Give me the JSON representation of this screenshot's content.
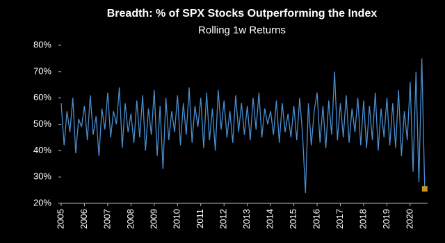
{
  "chart_data": {
    "type": "line",
    "title": "Breadth: % of SPX Stocks Outperforming the Index",
    "subtitle": "Rolling 1w Returns",
    "x": [
      2005,
      2005.125,
      2005.25,
      2005.375,
      2005.5,
      2005.625,
      2005.75,
      2005.875,
      2006,
      2006.125,
      2006.25,
      2006.375,
      2006.5,
      2006.625,
      2006.75,
      2006.875,
      2007,
      2007.125,
      2007.25,
      2007.375,
      2007.5,
      2007.625,
      2007.75,
      2007.875,
      2008,
      2008.125,
      2008.25,
      2008.375,
      2008.5,
      2008.625,
      2008.75,
      2008.875,
      2009,
      2009.125,
      2009.25,
      2009.375,
      2009.5,
      2009.625,
      2009.75,
      2009.875,
      2010,
      2010.125,
      2010.25,
      2010.375,
      2010.5,
      2010.625,
      2010.75,
      2010.875,
      2011,
      2011.125,
      2011.25,
      2011.375,
      2011.5,
      2011.625,
      2011.75,
      2011.875,
      2012,
      2012.125,
      2012.25,
      2012.375,
      2012.5,
      2012.625,
      2012.75,
      2012.875,
      2013,
      2013.125,
      2013.25,
      2013.375,
      2013.5,
      2013.625,
      2013.75,
      2013.875,
      2014,
      2014.125,
      2014.25,
      2014.375,
      2014.5,
      2014.625,
      2014.75,
      2014.875,
      2015,
      2015.125,
      2015.25,
      2015.375,
      2015.5,
      2015.625,
      2015.75,
      2015.875,
      2016,
      2016.125,
      2016.25,
      2016.375,
      2016.5,
      2016.625,
      2016.75,
      2016.875,
      2017,
      2017.125,
      2017.25,
      2017.375,
      2017.5,
      2017.625,
      2017.75,
      2017.875,
      2018,
      2018.125,
      2018.25,
      2018.375,
      2018.5,
      2018.625,
      2018.75,
      2018.875,
      2019,
      2019.125,
      2019.25,
      2019.375,
      2019.5,
      2019.625,
      2019.75,
      2019.875,
      2020,
      2020.125,
      2020.25,
      2020.375,
      2020.5,
      2020.625
    ],
    "series": [
      {
        "color": "#4a8fd0",
        "last_point_color": "#c8961e",
        "values": [
          58,
          42,
          55,
          47,
          60,
          39,
          52,
          49,
          57,
          44,
          61,
          46,
          53,
          38,
          56,
          48,
          62,
          45,
          55,
          50,
          64,
          41,
          58,
          47,
          54,
          43,
          59,
          45,
          61,
          40,
          56,
          46,
          63,
          38,
          57,
          33,
          60,
          44,
          55,
          47,
          61,
          42,
          58,
          46,
          64,
          43,
          57,
          49,
          60,
          41,
          62,
          44,
          56,
          40,
          63,
          48,
          59,
          45,
          55,
          43,
          61,
          47,
          58,
          46,
          57,
          44,
          60,
          48,
          62,
          45,
          56,
          50,
          55,
          46,
          59,
          43,
          58,
          47,
          54,
          45,
          57,
          44,
          60,
          46,
          24,
          58,
          42,
          55,
          62,
          43,
          57,
          41,
          59,
          46,
          70,
          44,
          58,
          45,
          61,
          43,
          56,
          47,
          60,
          42,
          59,
          41,
          57,
          44,
          62,
          40,
          56,
          45,
          60,
          42,
          58,
          41,
          63,
          38,
          55,
          44,
          66,
          32,
          70,
          28,
          75,
          25.5
        ]
      }
    ],
    "xlim": [
      2005,
      2020.75
    ],
    "xticks": [
      2005,
      2006,
      2007,
      2008,
      2009,
      2010,
      2011,
      2012,
      2013,
      2014,
      2015,
      2016,
      2017,
      2018,
      2019,
      2020
    ],
    "ylim": [
      20,
      80
    ],
    "yticks": [
      {
        "value": 20,
        "label": "20%"
      },
      {
        "value": 30,
        "label": "30%"
      },
      {
        "value": 40,
        "label": "40%"
      },
      {
        "value": 50,
        "label": "50%"
      },
      {
        "value": 60,
        "label": "60%"
      },
      {
        "value": 70,
        "label": "70%"
      },
      {
        "value": 80,
        "label": "80%"
      }
    ]
  }
}
